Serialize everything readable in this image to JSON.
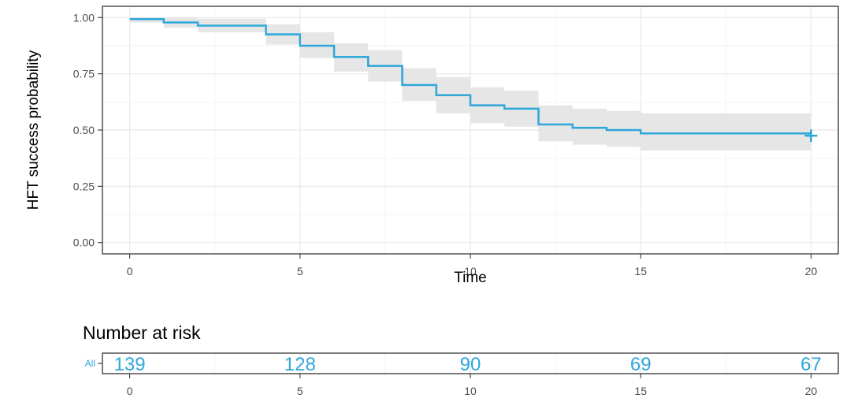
{
  "chart_data": [
    {
      "type": "line",
      "subtype": "kaplan-meier step curve with confidence band",
      "xlabel": "Time",
      "ylabel": "HFT success probability",
      "xlim": [
        -0.8,
        20.8
      ],
      "ylim": [
        -0.05,
        1.05
      ],
      "x_ticks": [
        0,
        5,
        10,
        15,
        20
      ],
      "x_tick_labels": [
        "0",
        "5",
        "10",
        "15",
        "20"
      ],
      "y_ticks": [
        0,
        0.25,
        0.5,
        0.75,
        1.0
      ],
      "y_tick_labels": [
        "0.00",
        "0.25",
        "0.50",
        "0.75",
        "1.00"
      ],
      "grid": true,
      "legend": "none",
      "series": [
        {
          "color": "#2ea7d9",
          "band_color": "#e6e6e6",
          "steps": [
            {
              "x": 0,
              "y": 0.993,
              "lower": 0.978,
              "upper": 1.0
            },
            {
              "x": 1,
              "y": 0.978,
              "lower": 0.955,
              "upper": 1.0
            },
            {
              "x": 2,
              "y": 0.964,
              "lower": 0.935,
              "upper": 0.995
            },
            {
              "x": 4,
              "y": 0.925,
              "lower": 0.88,
              "upper": 0.97
            },
            {
              "x": 5,
              "y": 0.875,
              "lower": 0.82,
              "upper": 0.935
            },
            {
              "x": 6,
              "y": 0.825,
              "lower": 0.76,
              "upper": 0.885
            },
            {
              "x": 7,
              "y": 0.785,
              "lower": 0.715,
              "upper": 0.855
            },
            {
              "x": 8,
              "y": 0.7,
              "lower": 0.63,
              "upper": 0.775
            },
            {
              "x": 9,
              "y": 0.655,
              "lower": 0.575,
              "upper": 0.735
            },
            {
              "x": 10,
              "y": 0.61,
              "lower": 0.53,
              "upper": 0.69
            },
            {
              "x": 11,
              "y": 0.595,
              "lower": 0.515,
              "upper": 0.675
            },
            {
              "x": 12,
              "y": 0.525,
              "lower": 0.45,
              "upper": 0.61
            },
            {
              "x": 13,
              "y": 0.51,
              "lower": 0.435,
              "upper": 0.595
            },
            {
              "x": 14,
              "y": 0.5,
              "lower": 0.425,
              "upper": 0.585
            },
            {
              "x": 15,
              "y": 0.485,
              "lower": 0.41,
              "upper": 0.575
            },
            {
              "x": 20,
              "y": 0.475,
              "lower": 0.4,
              "upper": 0.565
            }
          ],
          "censor": [
            {
              "x": 20,
              "y": 0.475
            }
          ]
        }
      ]
    },
    {
      "type": "table",
      "title": "Number at risk",
      "strata": [
        {
          "label": "All",
          "color": "#2ea7d9",
          "counts": [
            139,
            128,
            90,
            69,
            67
          ]
        }
      ],
      "x": [
        0,
        5,
        10,
        15,
        20
      ],
      "x_tick_labels": [
        "0",
        "5",
        "10",
        "15",
        "20"
      ],
      "xlim": [
        -0.8,
        20.8
      ]
    }
  ]
}
